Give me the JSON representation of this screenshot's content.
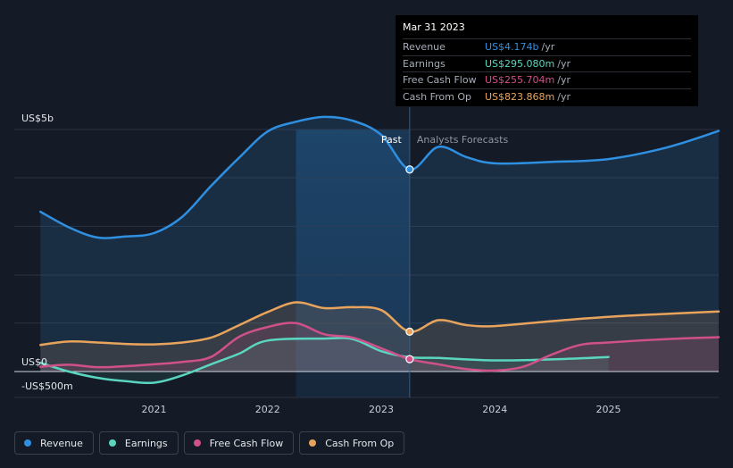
{
  "chart_data": {
    "type": "line",
    "y_labels": [
      "US$5b",
      "US$0",
      "-US$500m"
    ],
    "y_ticks": [
      5000,
      0,
      -500
    ],
    "x_ticks": [
      {
        "label": "2021",
        "x": 2021.0
      },
      {
        "label": "2022",
        "x": 2022.0
      },
      {
        "label": "2023",
        "x": 2023.0
      },
      {
        "label": "2024",
        "x": 2024.0
      },
      {
        "label": "2025",
        "x": 2025.0
      }
    ],
    "xlim": [
      2019.77,
      2025.97
    ],
    "ylim": [
      -500,
      5000
    ],
    "past_label": "Past",
    "forecast_label": "Analysts Forecasts",
    "divider_x": 2023.25,
    "highlight_range": [
      2022.25,
      2023.25
    ],
    "series": [
      {
        "name": "Revenue",
        "color": "#2f8fe0",
        "points": [
          [
            2020.0,
            3300
          ],
          [
            2020.25,
            2980
          ],
          [
            2020.5,
            2770
          ],
          [
            2020.75,
            2790
          ],
          [
            2021.0,
            2860
          ],
          [
            2021.25,
            3200
          ],
          [
            2021.5,
            3830
          ],
          [
            2021.75,
            4420
          ],
          [
            2022.0,
            4960
          ],
          [
            2022.25,
            5160
          ],
          [
            2022.5,
            5260
          ],
          [
            2022.75,
            5180
          ],
          [
            2023.0,
            4890
          ],
          [
            2023.25,
            4174
          ],
          [
            2023.5,
            4640
          ],
          [
            2023.75,
            4430
          ],
          [
            2024.0,
            4300
          ],
          [
            2024.5,
            4330
          ],
          [
            2025.0,
            4390
          ],
          [
            2025.5,
            4620
          ],
          [
            2025.97,
            4970
          ]
        ]
      },
      {
        "name": "Earnings",
        "color": "#5ad6c0",
        "points": [
          [
            2020.0,
            180
          ],
          [
            2020.25,
            0
          ],
          [
            2020.5,
            -130
          ],
          [
            2020.75,
            -200
          ],
          [
            2021.0,
            -230
          ],
          [
            2021.25,
            -80
          ],
          [
            2021.5,
            150
          ],
          [
            2021.75,
            370
          ],
          [
            2022.0,
            640
          ],
          [
            2022.5,
            680
          ],
          [
            2022.75,
            670
          ],
          [
            2023.0,
            420
          ],
          [
            2023.25,
            295
          ],
          [
            2023.5,
            280
          ],
          [
            2024.0,
            230
          ],
          [
            2024.5,
            250
          ],
          [
            2025.0,
            300
          ]
        ]
      },
      {
        "name": "Free Cash Flow",
        "color": "#d0508a",
        "points": [
          [
            2020.0,
            100
          ],
          [
            2020.25,
            140
          ],
          [
            2020.5,
            90
          ],
          [
            2020.75,
            110
          ],
          [
            2021.0,
            150
          ],
          [
            2021.25,
            200
          ],
          [
            2021.5,
            300
          ],
          [
            2021.75,
            720
          ],
          [
            2022.0,
            920
          ],
          [
            2022.25,
            1000
          ],
          [
            2022.5,
            770
          ],
          [
            2022.75,
            700
          ],
          [
            2023.0,
            480
          ],
          [
            2023.25,
            256
          ],
          [
            2023.5,
            150
          ],
          [
            2023.75,
            50
          ],
          [
            2024.0,
            20
          ],
          [
            2024.25,
            100
          ],
          [
            2024.5,
            350
          ],
          [
            2024.75,
            550
          ],
          [
            2025.0,
            600
          ],
          [
            2025.5,
            670
          ],
          [
            2025.97,
            710
          ]
        ]
      },
      {
        "name": "Cash From Op",
        "color": "#e8a45c",
        "points": [
          [
            2020.0,
            550
          ],
          [
            2020.25,
            620
          ],
          [
            2020.5,
            600
          ],
          [
            2020.75,
            570
          ],
          [
            2021.0,
            560
          ],
          [
            2021.25,
            600
          ],
          [
            2021.5,
            700
          ],
          [
            2021.75,
            960
          ],
          [
            2022.0,
            1230
          ],
          [
            2022.25,
            1430
          ],
          [
            2022.5,
            1310
          ],
          [
            2022.75,
            1330
          ],
          [
            2023.0,
            1270
          ],
          [
            2023.25,
            824
          ],
          [
            2023.5,
            1060
          ],
          [
            2023.75,
            960
          ],
          [
            2024.0,
            940
          ],
          [
            2024.5,
            1040
          ],
          [
            2025.0,
            1130
          ],
          [
            2025.5,
            1190
          ],
          [
            2025.97,
            1240
          ]
        ]
      }
    ],
    "highlight_points": [
      {
        "series": "Revenue",
        "x": 2023.25,
        "y": 4174
      },
      {
        "series": "Cash From Op",
        "x": 2023.25,
        "y": 824
      },
      {
        "series": "Free Cash Flow",
        "x": 2023.25,
        "y": 256
      }
    ],
    "grid": true
  },
  "tooltip": {
    "date": "Mar 31 2023",
    "rows": [
      {
        "label": "Revenue",
        "value": "US$4.174b",
        "unit": "/yr",
        "color": "#2f8fe0"
      },
      {
        "label": "Earnings",
        "value": "US$295.080m",
        "unit": "/yr",
        "color": "#5ad6c0"
      },
      {
        "label": "Free Cash Flow",
        "value": "US$255.704m",
        "unit": "/yr",
        "color": "#d0508a"
      },
      {
        "label": "Cash From Op",
        "value": "US$823.868m",
        "unit": "/yr",
        "color": "#e8a45c"
      }
    ]
  },
  "legend": [
    {
      "label": "Revenue",
      "color": "#2f8fe0"
    },
    {
      "label": "Earnings",
      "color": "#5ad6c0"
    },
    {
      "label": "Free Cash Flow",
      "color": "#d0508a"
    },
    {
      "label": "Cash From Op",
      "color": "#e8a45c"
    }
  ]
}
